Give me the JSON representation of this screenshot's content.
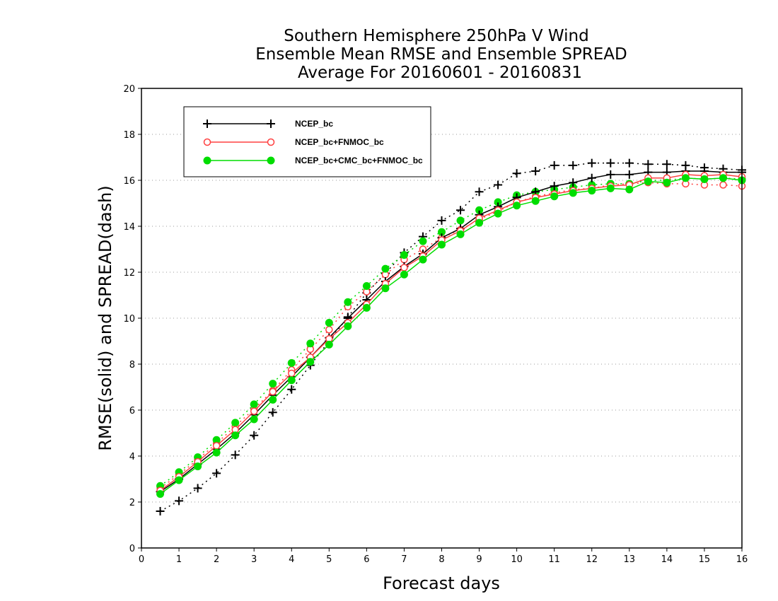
{
  "title": [
    "Southern Hemisphere 250hPa V Wind",
    "Ensemble Mean RMSE and Ensemble SPREAD",
    "Average For 20160601 - 20160831"
  ],
  "chart_data": {
    "type": "line",
    "title": "Southern Hemisphere 250hPa V Wind / Ensemble Mean RMSE and Ensemble SPREAD / Average For 20160601 - 20160831",
    "xlabel": "Forecast days",
    "ylabel": "RMSE(solid) and SPREAD(dash)",
    "xlim": [
      0,
      16
    ],
    "ylim": [
      0,
      20
    ],
    "xticks": [
      0,
      1,
      2,
      3,
      4,
      5,
      6,
      7,
      8,
      9,
      10,
      11,
      12,
      13,
      14,
      15,
      16
    ],
    "yticks": [
      0,
      2,
      4,
      6,
      8,
      10,
      12,
      14,
      16,
      18,
      20
    ],
    "grid": "horizontal dotted",
    "legend_position": "top-left",
    "x": [
      0.5,
      1,
      1.5,
      2,
      2.5,
      3,
      3.5,
      4,
      4.5,
      5,
      5.5,
      6,
      6.5,
      7,
      7.5,
      8,
      8.5,
      9,
      9.5,
      10,
      10.5,
      11,
      11.5,
      12,
      12.5,
      13,
      13.5,
      14,
      14.5,
      15,
      15.5,
      16
    ],
    "series": [
      {
        "name": "NCEP_bc",
        "kind": "RMSE",
        "style": "solid",
        "color": "#000000",
        "marker": "plus",
        "values": [
          2.45,
          3.0,
          3.65,
          4.3,
          5.0,
          5.8,
          6.65,
          7.45,
          8.3,
          9.15,
          10.0,
          10.8,
          11.6,
          12.25,
          12.8,
          13.5,
          13.9,
          14.5,
          14.85,
          15.25,
          15.5,
          15.75,
          15.9,
          16.1,
          16.25,
          16.25,
          16.35,
          16.35,
          16.4,
          16.4,
          16.35,
          16.35
        ]
      },
      {
        "name": "NCEP_bc",
        "kind": "SPREAD",
        "style": "dotted",
        "color": "#000000",
        "marker": "plus",
        "values": [
          1.6,
          2.05,
          2.6,
          3.25,
          4.05,
          4.9,
          5.9,
          6.9,
          7.95,
          9.0,
          10.05,
          11.1,
          11.95,
          12.85,
          13.55,
          14.25,
          14.7,
          15.5,
          15.8,
          16.3,
          16.4,
          16.65,
          16.65,
          16.75,
          16.75,
          16.75,
          16.7,
          16.7,
          16.65,
          16.55,
          16.5,
          16.45
        ]
      },
      {
        "name": "NCEP_bc+FNMOC_bc",
        "kind": "RMSE",
        "style": "solid",
        "color": "#ff4040",
        "marker": "open-circle",
        "values": [
          2.5,
          3.1,
          3.75,
          4.45,
          5.15,
          5.95,
          6.8,
          7.6,
          8.3,
          9.1,
          9.8,
          10.6,
          11.5,
          12.2,
          12.7,
          13.4,
          13.8,
          14.35,
          14.7,
          15.05,
          15.25,
          15.4,
          15.55,
          15.65,
          15.75,
          15.8,
          16.1,
          16.1,
          16.25,
          16.2,
          16.25,
          16.15
        ]
      },
      {
        "name": "NCEP_bc+FNMOC_bc",
        "kind": "SPREAD",
        "style": "dotted",
        "color": "#ff4040",
        "marker": "open-circle",
        "values": [
          2.6,
          3.2,
          3.85,
          4.55,
          5.3,
          6.05,
          6.85,
          7.75,
          8.65,
          9.5,
          10.5,
          11.15,
          11.9,
          12.55,
          13.0,
          13.5,
          13.85,
          14.3,
          14.65,
          15.05,
          15.3,
          15.45,
          15.6,
          15.65,
          15.8,
          15.85,
          15.9,
          15.85,
          15.85,
          15.8,
          15.8,
          15.75
        ]
      },
      {
        "name": "NCEP_bc+CMC_bc+FNMOC_bc",
        "kind": "RMSE",
        "style": "solid",
        "color": "#00dd00",
        "marker": "filled-circle",
        "values": [
          2.35,
          2.95,
          3.55,
          4.15,
          4.9,
          5.6,
          6.45,
          7.3,
          8.1,
          8.85,
          9.65,
          10.45,
          11.3,
          11.9,
          12.55,
          13.2,
          13.65,
          14.15,
          14.55,
          14.9,
          15.1,
          15.3,
          15.45,
          15.55,
          15.65,
          15.6,
          15.95,
          15.9,
          16.1,
          16.05,
          16.1,
          16.0
        ]
      },
      {
        "name": "NCEP_bc+CMC_bc+FNMOC_bc",
        "kind": "SPREAD",
        "style": "dotted",
        "color": "#00dd00",
        "marker": "filled-circle",
        "values": [
          2.7,
          3.3,
          3.95,
          4.7,
          5.45,
          6.25,
          7.15,
          8.05,
          8.9,
          9.8,
          10.7,
          11.4,
          12.15,
          12.75,
          13.35,
          13.75,
          14.25,
          14.7,
          15.05,
          15.35,
          15.5,
          15.6,
          15.7,
          15.8,
          15.85,
          15.85,
          16.0,
          16.0,
          16.1,
          16.05,
          16.1,
          16.05
        ]
      }
    ],
    "legend": [
      {
        "label": "NCEP_bc",
        "color": "#000000",
        "marker": "plus"
      },
      {
        "label": "NCEP_bc+FNMOC_bc",
        "color": "#ff4040",
        "marker": "open-circle"
      },
      {
        "label": "NCEP_bc+CMC_bc+FNMOC_bc",
        "color": "#00dd00",
        "marker": "filled-circle"
      }
    ]
  }
}
